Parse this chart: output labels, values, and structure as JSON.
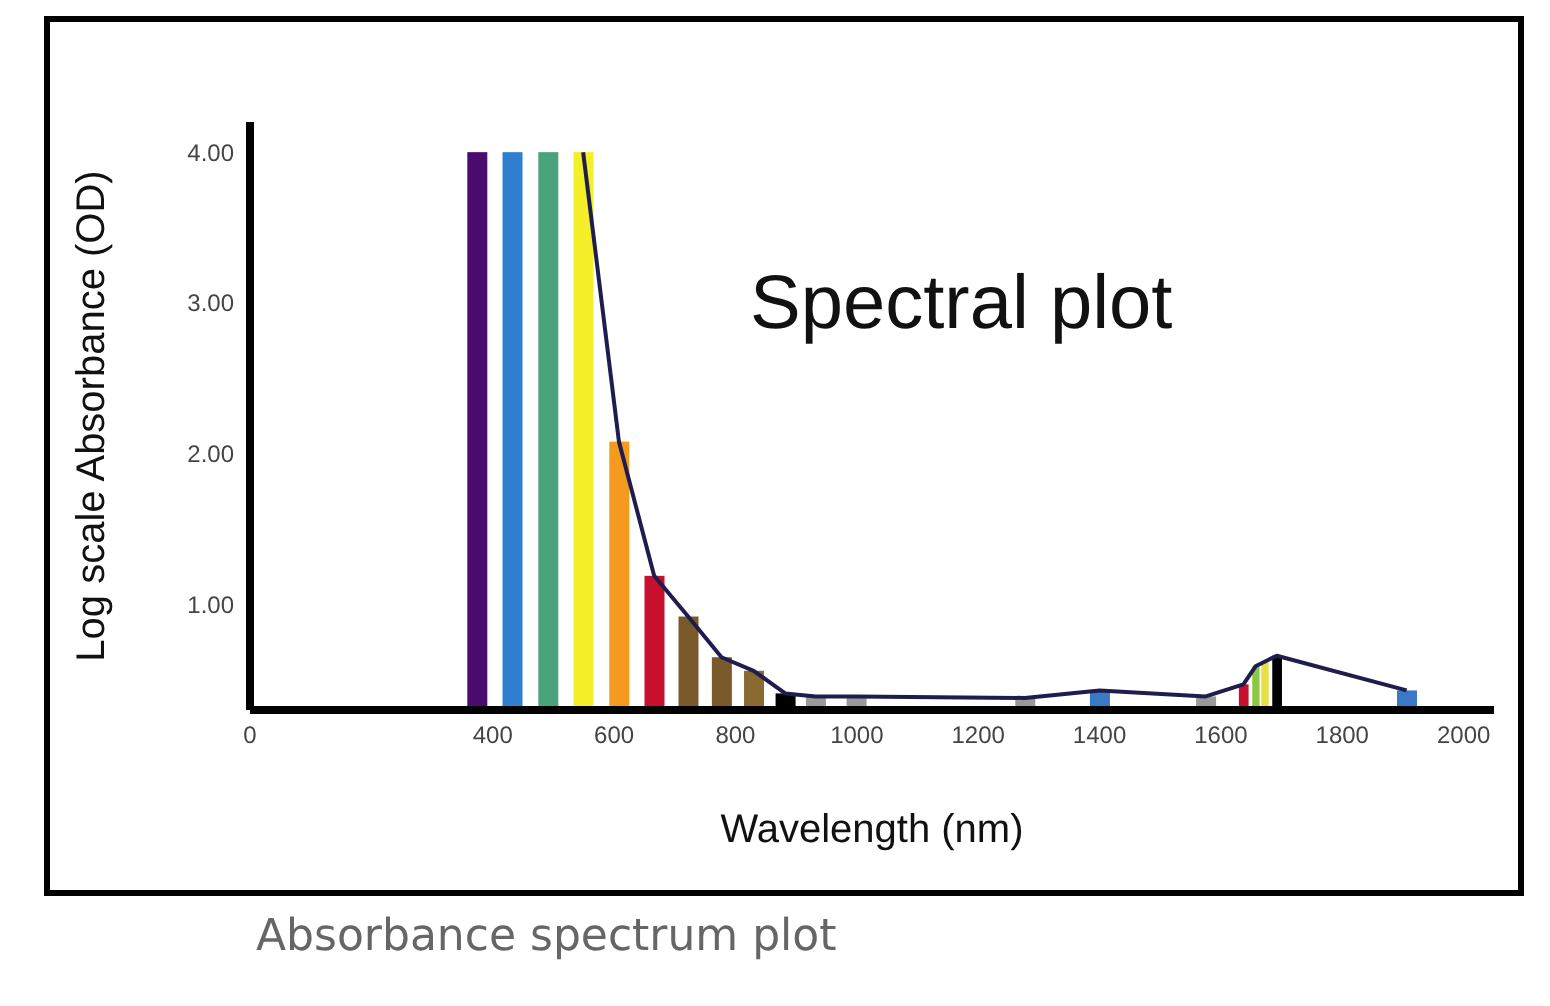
{
  "chart_data": {
    "type": "bar",
    "title": "Spectral plot",
    "xlabel": "Wavelength  (nm)",
    "ylabel": "Log scale Absorbance (OD)",
    "annotations": [
      "Absorbance spectrum plot"
    ],
    "x": [
      374,
      432,
      491,
      549,
      608,
      666,
      722,
      777,
      830,
      882,
      932,
      999,
      1277,
      1400,
      1575,
      1637,
      1657,
      1672,
      1692,
      1906
    ],
    "series": [
      {
        "colors": [
          "#4b0a6e",
          "#2f7fd0",
          "#4aa37a",
          "#f5ef2a",
          "#f39a1f",
          "#c8102e",
          "#7a5a2a",
          "#7a5a2a",
          "#8a6a30",
          "#000000",
          "#9a9a9a",
          "#9a9a9a",
          "#9a9a9a",
          "#3a78c8",
          "#9a9a9a",
          "#c8102e",
          "#8dc63f",
          "#e8e040",
          "#000000",
          "#3a78c8"
        ],
        "values": [
          4.0,
          4.0,
          4.0,
          4.0,
          2.08,
          1.19,
          0.92,
          0.65,
          0.56,
          0.41,
          0.39,
          0.39,
          0.38,
          0.43,
          0.39,
          0.47,
          0.59,
          0.62,
          0.66,
          0.43
        ]
      },
      {
        "type": "line",
        "color": "#1f1d4d",
        "values": [
          null,
          null,
          null,
          4.0,
          2.08,
          1.19,
          0.92,
          0.65,
          0.56,
          0.41,
          0.39,
          0.39,
          0.38,
          0.43,
          0.39,
          0.47,
          0.59,
          0.62,
          0.66,
          0.43
        ]
      }
    ],
    "xlim": [
      0,
      2050
    ],
    "xticks": [
      0,
      400,
      600,
      800,
      1000,
      1200,
      1400,
      1600,
      1800,
      2000
    ],
    "ylim": [
      0.3,
      4.2
    ],
    "yticks": [
      {
        "value": 1,
        "label": "1.00"
      },
      {
        "value": 2,
        "label": "2.00"
      },
      {
        "value": 3,
        "label": "3.00"
      },
      {
        "value": 4,
        "label": "4.00"
      }
    ],
    "grid": false,
    "legend": false,
    "marker": "none",
    "line_style": "solid"
  }
}
